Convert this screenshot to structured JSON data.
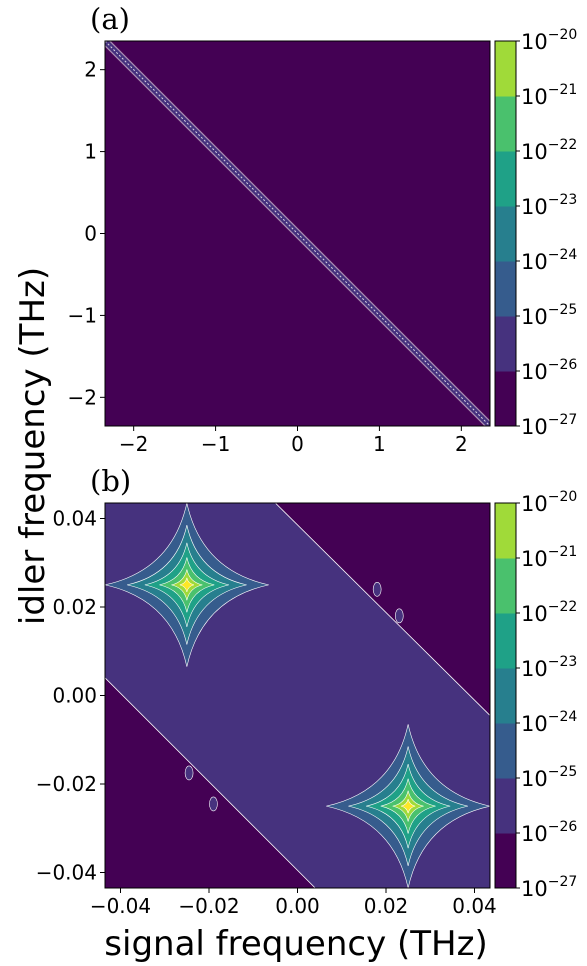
{
  "figure": {
    "xlabel": "signal frequency (THz)",
    "ylabel": "idler frequency (THz)",
    "colormap": [
      "#440154",
      "#46327e",
      "#365c8d",
      "#277f8e",
      "#1fa187",
      "#4ac16d",
      "#a0da39",
      "#fde725"
    ]
  },
  "chart_data": [
    {
      "panel": "(a)",
      "type": "heatmap",
      "xlabel": "signal frequency (THz)",
      "ylabel": "idler frequency (THz)",
      "xlim": [
        -2.35,
        2.35
      ],
      "ylim": [
        -2.35,
        2.35
      ],
      "xticks": [
        -2,
        -1,
        0,
        1,
        2
      ],
      "xtick_labels": [
        "−2",
        "−1",
        "0",
        "1",
        "2"
      ],
      "yticks": [
        -2,
        -1,
        0,
        1,
        2
      ],
      "ytick_labels": [
        "−2",
        "−1",
        "0",
        "1",
        "2"
      ],
      "colorbar": {
        "scale": "log",
        "levels": [
          -27,
          -26,
          -25,
          -24,
          -23,
          -22,
          -21,
          -20
        ],
        "tick_base": "10",
        "tick_exponents": [
          "−27",
          "−26",
          "−25",
          "−24",
          "−23",
          "−22",
          "−21",
          "−20"
        ]
      },
      "features": {
        "anti_diagonal_line": {
          "from": [
            -2.35,
            2.35
          ],
          "to": [
            2.35,
            -2.35
          ],
          "level_exponent": -26
        }
      }
    },
    {
      "panel": "(b)",
      "type": "heatmap",
      "xlabel": "signal frequency (THz)",
      "ylabel": "idler frequency (THz)",
      "xlim": [
        -0.0435,
        0.0435
      ],
      "ylim": [
        -0.0435,
        0.0435
      ],
      "xticks": [
        -0.04,
        -0.02,
        0.0,
        0.02,
        0.04
      ],
      "xtick_labels": [
        "−0.04",
        "−0.02",
        "0.00",
        "0.02",
        "0.04"
      ],
      "yticks": [
        -0.04,
        -0.02,
        0.0,
        0.02,
        0.04
      ],
      "ytick_labels": [
        "−0.04",
        "−0.02",
        "0.00",
        "0.02",
        "0.04"
      ],
      "colorbar": {
        "scale": "log",
        "levels": [
          -27,
          -26,
          -25,
          -24,
          -23,
          -22,
          -21,
          -20
        ],
        "tick_base": "10",
        "tick_exponents": [
          "−27",
          "−26",
          "−25",
          "−24",
          "−23",
          "−22",
          "−21",
          "−20"
        ]
      },
      "features": {
        "band": {
          "polygon": [
            [
              -0.0435,
              0.004
            ],
            [
              -0.0435,
              0.0435
            ],
            [
              -0.005,
              0.0435
            ],
            [
              0.0435,
              -0.0045
            ],
            [
              0.0435,
              -0.0435
            ],
            [
              0.004,
              -0.0435
            ]
          ],
          "level_exponent": -26
        },
        "peaks": [
          {
            "center": [
              -0.025,
              0.025
            ],
            "level_exponent": -20
          },
          {
            "center": [
              0.025,
              -0.025
            ],
            "level_exponent": -20
          }
        ],
        "blobs": [
          {
            "center": [
              0.018,
              0.024
            ],
            "level_exponent": -26
          },
          {
            "center": [
              0.023,
              0.018
            ],
            "level_exponent": -26
          },
          {
            "center": [
              -0.0245,
              -0.0175
            ],
            "level_exponent": -26
          },
          {
            "center": [
              -0.019,
              -0.0245
            ],
            "level_exponent": -26
          }
        ]
      }
    }
  ]
}
